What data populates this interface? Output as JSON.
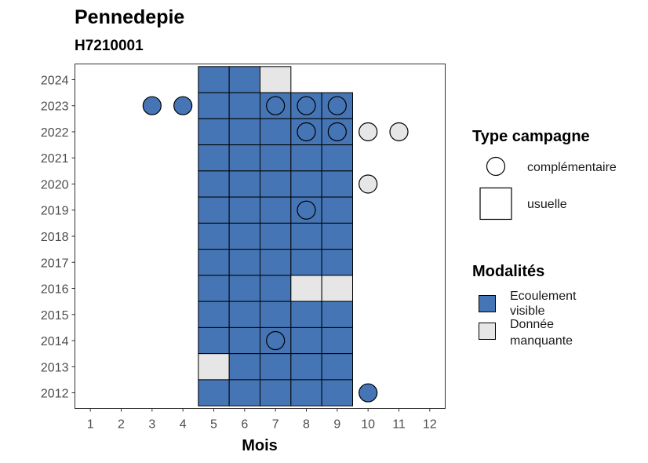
{
  "chart_data": {
    "type": "heatmap",
    "title": "Pennedepie",
    "subtitle": "H7210001",
    "xlabel": "Mois",
    "ylabel": "",
    "x_ticks": [
      1,
      2,
      3,
      4,
      5,
      6,
      7,
      8,
      9,
      10,
      11,
      12
    ],
    "y_ticks": [
      2012,
      2013,
      2014,
      2015,
      2016,
      2017,
      2018,
      2019,
      2020,
      2021,
      2022,
      2023,
      2024
    ],
    "xlim": [
      0.5,
      12.5
    ],
    "ylim": [
      2011.4,
      2024.6
    ],
    "grid": false,
    "legend_position": "right",
    "colors": {
      "Ecoulement visible": "#4575b4",
      "Donnée manquante": "#e6e6e6"
    },
    "legends": [
      {
        "title": "Type campagne",
        "items": [
          {
            "label": "complémentaire",
            "shape": "circle"
          },
          {
            "label": "usuelle",
            "shape": "square"
          }
        ]
      },
      {
        "title": "Modalités",
        "items": [
          {
            "label": "Ecoulement visible",
            "lines": [
              "Ecoulement",
              "visible"
            ]
          },
          {
            "label": "Donnée manquante",
            "lines": [
              "Donnée",
              "manquante"
            ]
          }
        ]
      }
    ],
    "usuelle": [
      {
        "year": 2024,
        "month": 5,
        "modalite": "Ecoulement visible"
      },
      {
        "year": 2024,
        "month": 6,
        "modalite": "Ecoulement visible"
      },
      {
        "year": 2024,
        "month": 7,
        "modalite": "Donnée manquante"
      },
      {
        "year": 2023,
        "month": 5,
        "modalite": "Ecoulement visible"
      },
      {
        "year": 2023,
        "month": 6,
        "modalite": "Ecoulement visible"
      },
      {
        "year": 2023,
        "month": 7,
        "modalite": "Ecoulement visible"
      },
      {
        "year": 2023,
        "month": 8,
        "modalite": "Ecoulement visible"
      },
      {
        "year": 2023,
        "month": 9,
        "modalite": "Ecoulement visible"
      },
      {
        "year": 2022,
        "month": 5,
        "modalite": "Ecoulement visible"
      },
      {
        "year": 2022,
        "month": 6,
        "modalite": "Ecoulement visible"
      },
      {
        "year": 2022,
        "month": 7,
        "modalite": "Ecoulement visible"
      },
      {
        "year": 2022,
        "month": 8,
        "modalite": "Ecoulement visible"
      },
      {
        "year": 2022,
        "month": 9,
        "modalite": "Ecoulement visible"
      },
      {
        "year": 2021,
        "month": 5,
        "modalite": "Ecoulement visible"
      },
      {
        "year": 2021,
        "month": 6,
        "modalite": "Ecoulement visible"
      },
      {
        "year": 2021,
        "month": 7,
        "modalite": "Ecoulement visible"
      },
      {
        "year": 2021,
        "month": 8,
        "modalite": "Ecoulement visible"
      },
      {
        "year": 2021,
        "month": 9,
        "modalite": "Ecoulement visible"
      },
      {
        "year": 2020,
        "month": 5,
        "modalite": "Ecoulement visible"
      },
      {
        "year": 2020,
        "month": 6,
        "modalite": "Ecoulement visible"
      },
      {
        "year": 2020,
        "month": 7,
        "modalite": "Ecoulement visible"
      },
      {
        "year": 2020,
        "month": 8,
        "modalite": "Ecoulement visible"
      },
      {
        "year": 2020,
        "month": 9,
        "modalite": "Ecoulement visible"
      },
      {
        "year": 2019,
        "month": 5,
        "modalite": "Ecoulement visible"
      },
      {
        "year": 2019,
        "month": 6,
        "modalite": "Ecoulement visible"
      },
      {
        "year": 2019,
        "month": 7,
        "modalite": "Ecoulement visible"
      },
      {
        "year": 2019,
        "month": 8,
        "modalite": "Ecoulement visible"
      },
      {
        "year": 2019,
        "month": 9,
        "modalite": "Ecoulement visible"
      },
      {
        "year": 2018,
        "month": 5,
        "modalite": "Ecoulement visible"
      },
      {
        "year": 2018,
        "month": 6,
        "modalite": "Ecoulement visible"
      },
      {
        "year": 2018,
        "month": 7,
        "modalite": "Ecoulement visible"
      },
      {
        "year": 2018,
        "month": 8,
        "modalite": "Ecoulement visible"
      },
      {
        "year": 2018,
        "month": 9,
        "modalite": "Ecoulement visible"
      },
      {
        "year": 2017,
        "month": 5,
        "modalite": "Ecoulement visible"
      },
      {
        "year": 2017,
        "month": 6,
        "modalite": "Ecoulement visible"
      },
      {
        "year": 2017,
        "month": 7,
        "modalite": "Ecoulement visible"
      },
      {
        "year": 2017,
        "month": 8,
        "modalite": "Ecoulement visible"
      },
      {
        "year": 2017,
        "month": 9,
        "modalite": "Ecoulement visible"
      },
      {
        "year": 2016,
        "month": 5,
        "modalite": "Ecoulement visible"
      },
      {
        "year": 2016,
        "month": 6,
        "modalite": "Ecoulement visible"
      },
      {
        "year": 2016,
        "month": 7,
        "modalite": "Ecoulement visible"
      },
      {
        "year": 2016,
        "month": 8,
        "modalite": "Donnée manquante"
      },
      {
        "year": 2016,
        "month": 9,
        "modalite": "Donnée manquante"
      },
      {
        "year": 2015,
        "month": 5,
        "modalite": "Ecoulement visible"
      },
      {
        "year": 2015,
        "month": 6,
        "modalite": "Ecoulement visible"
      },
      {
        "year": 2015,
        "month": 7,
        "modalite": "Ecoulement visible"
      },
      {
        "year": 2015,
        "month": 8,
        "modalite": "Ecoulement visible"
      },
      {
        "year": 2015,
        "month": 9,
        "modalite": "Ecoulement visible"
      },
      {
        "year": 2014,
        "month": 5,
        "modalite": "Ecoulement visible"
      },
      {
        "year": 2014,
        "month": 6,
        "modalite": "Ecoulement visible"
      },
      {
        "year": 2014,
        "month": 7,
        "modalite": "Ecoulement visible"
      },
      {
        "year": 2014,
        "month": 8,
        "modalite": "Ecoulement visible"
      },
      {
        "year": 2014,
        "month": 9,
        "modalite": "Ecoulement visible"
      },
      {
        "year": 2013,
        "month": 5,
        "modalite": "Donnée manquante"
      },
      {
        "year": 2013,
        "month": 6,
        "modalite": "Ecoulement visible"
      },
      {
        "year": 2013,
        "month": 7,
        "modalite": "Ecoulement visible"
      },
      {
        "year": 2013,
        "month": 8,
        "modalite": "Ecoulement visible"
      },
      {
        "year": 2013,
        "month": 9,
        "modalite": "Ecoulement visible"
      },
      {
        "year": 2012,
        "month": 5,
        "modalite": "Ecoulement visible"
      },
      {
        "year": 2012,
        "month": 6,
        "modalite": "Ecoulement visible"
      },
      {
        "year": 2012,
        "month": 7,
        "modalite": "Ecoulement visible"
      },
      {
        "year": 2012,
        "month": 8,
        "modalite": "Ecoulement visible"
      },
      {
        "year": 2012,
        "month": 9,
        "modalite": "Ecoulement visible"
      }
    ],
    "complementaire": [
      {
        "year": 2023,
        "month": 3,
        "modalite": "Ecoulement visible"
      },
      {
        "year": 2023,
        "month": 4,
        "modalite": "Ecoulement visible"
      },
      {
        "year": 2023,
        "month": 7,
        "modalite": "Ecoulement visible"
      },
      {
        "year": 2023,
        "month": 8,
        "modalite": "Ecoulement visible"
      },
      {
        "year": 2023,
        "month": 9,
        "modalite": "Ecoulement visible"
      },
      {
        "year": 2022,
        "month": 8,
        "modalite": "Ecoulement visible"
      },
      {
        "year": 2022,
        "month": 9,
        "modalite": "Ecoulement visible"
      },
      {
        "year": 2022,
        "month": 10,
        "modalite": "Donnée manquante"
      },
      {
        "year": 2022,
        "month": 11,
        "modalite": "Donnée manquante"
      },
      {
        "year": 2020,
        "month": 10,
        "modalite": "Donnée manquante"
      },
      {
        "year": 2019,
        "month": 8,
        "modalite": "Ecoulement visible"
      },
      {
        "year": 2014,
        "month": 7,
        "modalite": "Ecoulement visible"
      },
      {
        "year": 2012,
        "month": 10,
        "modalite": "Ecoulement visible"
      }
    ]
  }
}
